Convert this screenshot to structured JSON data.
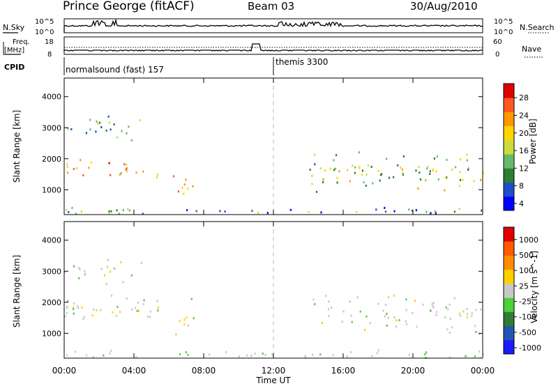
{
  "header": {
    "title": "Prince George (fitACF)",
    "beam": "Beam 03",
    "date": "30/Aug/2010"
  },
  "noise_panel": {
    "left_label": "N.Sky",
    "right_label": "N.Search",
    "left_ticks": [
      "10^5",
      "10^0"
    ],
    "right_ticks": [
      "10^5",
      "10^0"
    ]
  },
  "freq_panel": {
    "left_label_1": "Freq.",
    "left_label_2": "[MHz]",
    "right_label": "Nave",
    "left_ticks": [
      "18",
      "8"
    ],
    "right_ticks": [
      "60",
      "0"
    ]
  },
  "cpid_panel": {
    "label": "CPID",
    "programs": [
      {
        "name": "normalsound (fast) 157",
        "start_hour": 0
      },
      {
        "name": "themis 3300",
        "start_hour": 12
      }
    ]
  },
  "x_axis": {
    "label": "Time UT",
    "ticks": [
      "00:00",
      "04:00",
      "08:00",
      "12:00",
      "16:00",
      "20:00",
      "00:00"
    ]
  },
  "colors": {
    "power_scale": [
      "#0000ff",
      "#1f4fc8",
      "#2e7d32",
      "#66bb6a",
      "#cddc39",
      "#ffd600",
      "#ff9800",
      "#ff5722",
      "#e00000"
    ],
    "velocity_scale": [
      "#1a1aff",
      "#2456b0",
      "#2e7d32",
      "#4cd137",
      "#c8c8c8",
      "#ffd000",
      "#ff8c00",
      "#ff5a00",
      "#e00000"
    ]
  },
  "chart_data": [
    {
      "type": "heatmap",
      "name": "power",
      "ylabel": "Slant Range [km]",
      "xlabel": "",
      "xlim_hours": [
        0,
        24
      ],
      "ylim": [
        200,
        4600
      ],
      "yticks": [
        1000,
        2000,
        3000,
        4000
      ],
      "colorbar": {
        "label": "Power [dB]",
        "ticks": [
          "28",
          "24",
          "20",
          "16",
          "12",
          "8",
          "4"
        ],
        "range": [
          0,
          30
        ]
      },
      "features": [
        {
          "hours": [
            0,
            6.0
          ],
          "range_km": [
            1300,
            2100
          ],
          "value": 20
        },
        {
          "hours": [
            0,
            4.5
          ],
          "range_km": [
            2600,
            3500
          ],
          "value": 10
        },
        {
          "hours": [
            6.2,
            7.4
          ],
          "range_km": [
            800,
            1700
          ],
          "value": 18
        },
        {
          "hours": [
            14.0,
            24.0
          ],
          "range_km": [
            900,
            2300
          ],
          "value": 14
        },
        {
          "hours": [
            0,
            24.0
          ],
          "range_km": [
            200,
            500
          ],
          "value": 8
        }
      ]
    },
    {
      "type": "heatmap",
      "name": "velocity",
      "ylabel": "Slant Range [km]",
      "xlabel": "Time UT",
      "xlim_hours": [
        0,
        24
      ],
      "ylim": [
        200,
        4600
      ],
      "yticks": [
        1000,
        2000,
        3000,
        4000
      ],
      "colorbar": {
        "label": "Velocity [m s^-1]",
        "ticks": [
          "1000",
          "500",
          "100",
          "25",
          "-25",
          "-100",
          "-500",
          "-1000"
        ],
        "range": [
          -1000,
          1000
        ]
      },
      "features": [
        {
          "hours": [
            0,
            6.0
          ],
          "range_km": [
            1300,
            2300
          ],
          "value": 0
        },
        {
          "hours": [
            0,
            4.5
          ],
          "range_km": [
            2600,
            3500
          ],
          "value": 0
        },
        {
          "hours": [
            6.2,
            7.4
          ],
          "range_km": [
            800,
            1700
          ],
          "value": 150
        },
        {
          "hours": [
            7.2,
            8.2
          ],
          "range_km": [
            1500,
            2200
          ],
          "value": -300
        },
        {
          "hours": [
            14.0,
            24.0
          ],
          "range_km": [
            900,
            2300
          ],
          "value": 0
        },
        {
          "hours": [
            0,
            24.0
          ],
          "range_km": [
            200,
            500
          ],
          "value": -60
        }
      ]
    }
  ]
}
